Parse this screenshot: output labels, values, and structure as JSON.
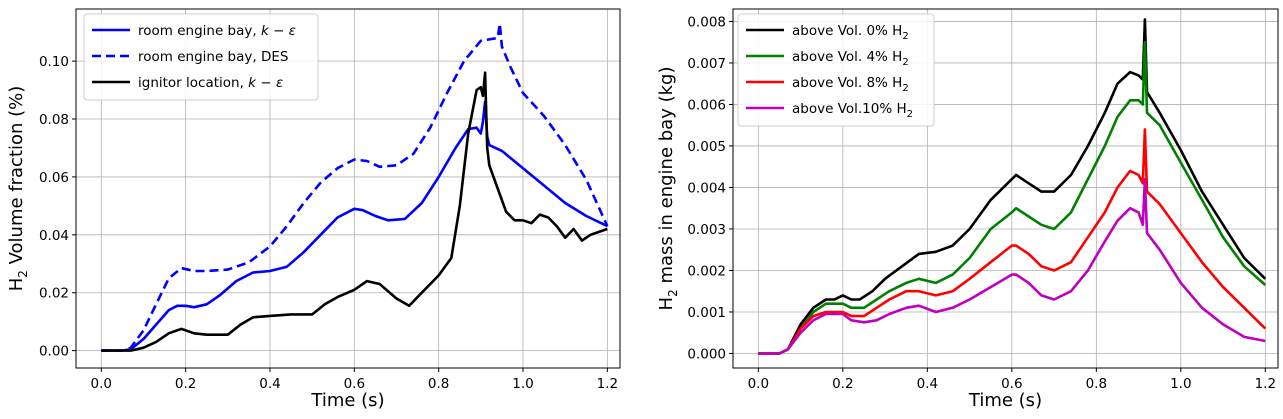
{
  "chart_data": [
    {
      "type": "line",
      "xlabel": "Time (s)",
      "ylabel": "Volume fraction (%)",
      "ylabel_prefix": "H",
      "ylabel_sub": "2",
      "xlim": [
        -0.06,
        1.23
      ],
      "ylim": [
        -0.006,
        0.118
      ],
      "xticks": [
        0.0,
        0.2,
        0.4,
        0.6,
        0.8,
        1.0,
        1.2
      ],
      "xtick_labels": [
        "0.0",
        "0.2",
        "0.4",
        "0.6",
        "0.8",
        "1.0",
        "1.2"
      ],
      "yticks": [
        0.0,
        0.02,
        0.04,
        0.06,
        0.08,
        0.1
      ],
      "ytick_labels": [
        "0.00",
        "0.02",
        "0.04",
        "0.06",
        "0.08",
        "0.10"
      ],
      "grid": true,
      "legend_position": "top-left",
      "series": [
        {
          "name": "room engine bay, k − ε",
          "legend_text": "room engine bay, ",
          "legend_math": "k − ε",
          "color": "#0000ff",
          "style": "solid",
          "x": [
            0.0,
            0.05,
            0.07,
            0.1,
            0.13,
            0.16,
            0.18,
            0.2,
            0.22,
            0.25,
            0.28,
            0.32,
            0.36,
            0.4,
            0.44,
            0.48,
            0.52,
            0.56,
            0.6,
            0.62,
            0.65,
            0.68,
            0.72,
            0.76,
            0.8,
            0.84,
            0.87,
            0.89,
            0.9,
            0.905,
            0.91,
            0.915,
            0.92,
            0.95,
            1.0,
            1.05,
            1.1,
            1.15,
            1.2
          ],
          "y": [
            0.0,
            0.0,
            0.0005,
            0.004,
            0.009,
            0.014,
            0.0155,
            0.0155,
            0.015,
            0.016,
            0.019,
            0.024,
            0.027,
            0.0275,
            0.029,
            0.034,
            0.04,
            0.046,
            0.049,
            0.0485,
            0.0465,
            0.045,
            0.0455,
            0.051,
            0.06,
            0.07,
            0.0765,
            0.077,
            0.075,
            0.079,
            0.086,
            0.074,
            0.071,
            0.069,
            0.063,
            0.057,
            0.051,
            0.0465,
            0.043
          ]
        },
        {
          "name": "room engine bay, DES",
          "legend_text": "room engine bay, DES",
          "legend_math": "",
          "color": "#0000ff",
          "style": "dashed",
          "x": [
            0.0,
            0.05,
            0.07,
            0.1,
            0.13,
            0.16,
            0.19,
            0.22,
            0.25,
            0.3,
            0.35,
            0.4,
            0.44,
            0.48,
            0.52,
            0.56,
            0.6,
            0.63,
            0.66,
            0.7,
            0.74,
            0.78,
            0.82,
            0.86,
            0.9,
            0.92,
            0.94,
            0.945,
            0.95,
            0.97,
            1.0,
            1.05,
            1.1,
            1.15,
            1.2
          ],
          "y": [
            0.0,
            0.0,
            0.001,
            0.007,
            0.016,
            0.025,
            0.0285,
            0.0275,
            0.0275,
            0.028,
            0.0305,
            0.036,
            0.043,
            0.051,
            0.058,
            0.063,
            0.066,
            0.0655,
            0.0635,
            0.064,
            0.068,
            0.077,
            0.089,
            0.1,
            0.107,
            0.1075,
            0.108,
            0.113,
            0.105,
            0.098,
            0.089,
            0.081,
            0.071,
            0.059,
            0.043
          ]
        },
        {
          "name": "ignitor location, k − ε",
          "legend_text": "ignitor location, ",
          "legend_math": "k − ε",
          "color": "#000000",
          "style": "solid",
          "x": [
            0.0,
            0.07,
            0.1,
            0.13,
            0.16,
            0.19,
            0.22,
            0.25,
            0.3,
            0.33,
            0.36,
            0.4,
            0.45,
            0.5,
            0.53,
            0.56,
            0.6,
            0.63,
            0.66,
            0.7,
            0.73,
            0.76,
            0.8,
            0.83,
            0.85,
            0.87,
            0.89,
            0.9,
            0.905,
            0.91,
            0.915,
            0.92,
            0.94,
            0.96,
            0.98,
            1.0,
            1.02,
            1.04,
            1.06,
            1.08,
            1.1,
            1.12,
            1.14,
            1.16,
            1.18,
            1.2
          ],
          "y": [
            0.0,
            0.0,
            0.001,
            0.003,
            0.006,
            0.0075,
            0.006,
            0.0055,
            0.0055,
            0.009,
            0.0115,
            0.012,
            0.0125,
            0.0125,
            0.016,
            0.0185,
            0.021,
            0.024,
            0.023,
            0.018,
            0.0155,
            0.02,
            0.026,
            0.032,
            0.05,
            0.075,
            0.09,
            0.091,
            0.088,
            0.096,
            0.07,
            0.064,
            0.056,
            0.048,
            0.045,
            0.045,
            0.044,
            0.047,
            0.046,
            0.043,
            0.039,
            0.042,
            0.038,
            0.04,
            0.041,
            0.042
          ]
        }
      ]
    },
    {
      "type": "line",
      "xlabel": "Time (s)",
      "ylabel": "mass in engine bay (kg)",
      "ylabel_prefix": "H",
      "ylabel_sub": "2",
      "xlim": [
        -0.06,
        1.23
      ],
      "ylim": [
        -0.00035,
        0.0083
      ],
      "xticks": [
        0.0,
        0.2,
        0.4,
        0.6,
        0.8,
        1.0,
        1.2
      ],
      "xtick_labels": [
        "0.0",
        "0.2",
        "0.4",
        "0.6",
        "0.8",
        "1.0",
        "1.2"
      ],
      "yticks": [
        0.0,
        0.001,
        0.002,
        0.003,
        0.004,
        0.005,
        0.006,
        0.007,
        0.008
      ],
      "ytick_labels": [
        "0.000",
        "0.001",
        "0.002",
        "0.003",
        "0.004",
        "0.005",
        "0.006",
        "0.007",
        "0.008"
      ],
      "grid": true,
      "legend_position": "top-left",
      "series": [
        {
          "name": "above Vol. 0% H2",
          "legend_text": "above Vol. 0% H",
          "legend_sub": "2",
          "color": "#000000",
          "x": [
            0.0,
            0.05,
            0.07,
            0.1,
            0.13,
            0.16,
            0.18,
            0.2,
            0.22,
            0.24,
            0.27,
            0.3,
            0.34,
            0.38,
            0.42,
            0.46,
            0.5,
            0.55,
            0.6,
            0.61,
            0.64,
            0.67,
            0.7,
            0.74,
            0.78,
            0.82,
            0.85,
            0.88,
            0.9,
            0.91,
            0.915,
            0.92,
            0.95,
            1.0,
            1.05,
            1.1,
            1.15,
            1.2
          ],
          "y": [
            0.0,
            0.0,
            0.0001,
            0.0007,
            0.0011,
            0.0013,
            0.0013,
            0.0014,
            0.0013,
            0.0013,
            0.0015,
            0.0018,
            0.0021,
            0.0024,
            0.00245,
            0.0026,
            0.003,
            0.0037,
            0.0042,
            0.0043,
            0.0041,
            0.0039,
            0.0039,
            0.0043,
            0.005,
            0.0058,
            0.0065,
            0.00678,
            0.0067,
            0.0066,
            0.00805,
            0.0063,
            0.0058,
            0.0049,
            0.0039,
            0.0031,
            0.0023,
            0.0018
          ]
        },
        {
          "name": "above Vol. 4% H2",
          "legend_text": "above Vol. 4% H",
          "legend_sub": "2",
          "color": "#008000",
          "x": [
            0.0,
            0.05,
            0.07,
            0.1,
            0.13,
            0.16,
            0.18,
            0.2,
            0.22,
            0.25,
            0.28,
            0.31,
            0.35,
            0.38,
            0.42,
            0.46,
            0.5,
            0.55,
            0.6,
            0.61,
            0.64,
            0.67,
            0.7,
            0.74,
            0.78,
            0.82,
            0.85,
            0.88,
            0.9,
            0.91,
            0.915,
            0.92,
            0.95,
            1.0,
            1.05,
            1.1,
            1.15,
            1.2
          ],
          "y": [
            0.0,
            0.0,
            0.0001,
            0.0006,
            0.001,
            0.0012,
            0.0012,
            0.0012,
            0.0011,
            0.0011,
            0.0013,
            0.0015,
            0.0017,
            0.0018,
            0.0017,
            0.0019,
            0.0023,
            0.003,
            0.0034,
            0.0035,
            0.0033,
            0.0031,
            0.003,
            0.0034,
            0.0042,
            0.005,
            0.0057,
            0.0061,
            0.0061,
            0.006,
            0.0075,
            0.0058,
            0.0055,
            0.0046,
            0.0037,
            0.0028,
            0.0021,
            0.00165
          ]
        },
        {
          "name": "above Vol. 8% H2",
          "legend_text": "above Vol. 8% H",
          "legend_sub": "2",
          "color": "#ff0000",
          "x": [
            0.0,
            0.05,
            0.07,
            0.1,
            0.13,
            0.16,
            0.18,
            0.2,
            0.22,
            0.25,
            0.28,
            0.31,
            0.35,
            0.38,
            0.42,
            0.46,
            0.5,
            0.55,
            0.6,
            0.61,
            0.64,
            0.67,
            0.7,
            0.74,
            0.78,
            0.82,
            0.85,
            0.88,
            0.9,
            0.91,
            0.915,
            0.92,
            0.95,
            1.0,
            1.05,
            1.1,
            1.15,
            1.2
          ],
          "y": [
            0.0,
            0.0,
            0.0001,
            0.0006,
            0.0009,
            0.001,
            0.001,
            0.001,
            0.0009,
            0.0009,
            0.0011,
            0.0013,
            0.0015,
            0.0015,
            0.0014,
            0.0015,
            0.0018,
            0.0022,
            0.0026,
            0.0026,
            0.0024,
            0.0021,
            0.002,
            0.0022,
            0.0028,
            0.0034,
            0.004,
            0.0044,
            0.0043,
            0.0041,
            0.0054,
            0.0039,
            0.0036,
            0.0029,
            0.0022,
            0.0016,
            0.0011,
            0.0006
          ]
        },
        {
          "name": "above Vol.10% H2",
          "legend_text": "above Vol.10% H",
          "legend_sub": "2",
          "color": "#bf00bf",
          "x": [
            0.0,
            0.05,
            0.07,
            0.1,
            0.13,
            0.16,
            0.18,
            0.2,
            0.22,
            0.25,
            0.28,
            0.31,
            0.35,
            0.38,
            0.42,
            0.46,
            0.5,
            0.55,
            0.6,
            0.61,
            0.64,
            0.67,
            0.7,
            0.74,
            0.78,
            0.82,
            0.85,
            0.88,
            0.9,
            0.91,
            0.915,
            0.92,
            0.95,
            1.0,
            1.05,
            1.1,
            1.15,
            1.2
          ],
          "y": [
            0.0,
            0.0,
            0.0001,
            0.0005,
            0.0008,
            0.00095,
            0.00095,
            0.00095,
            0.0008,
            0.00075,
            0.0008,
            0.00095,
            0.0011,
            0.00115,
            0.001,
            0.0011,
            0.0013,
            0.0016,
            0.0019,
            0.0019,
            0.0017,
            0.0014,
            0.0013,
            0.0015,
            0.002,
            0.0027,
            0.0032,
            0.0035,
            0.0034,
            0.0031,
            0.0042,
            0.0029,
            0.0025,
            0.0017,
            0.0011,
            0.0007,
            0.0004,
            0.0003
          ]
        }
      ]
    }
  ]
}
